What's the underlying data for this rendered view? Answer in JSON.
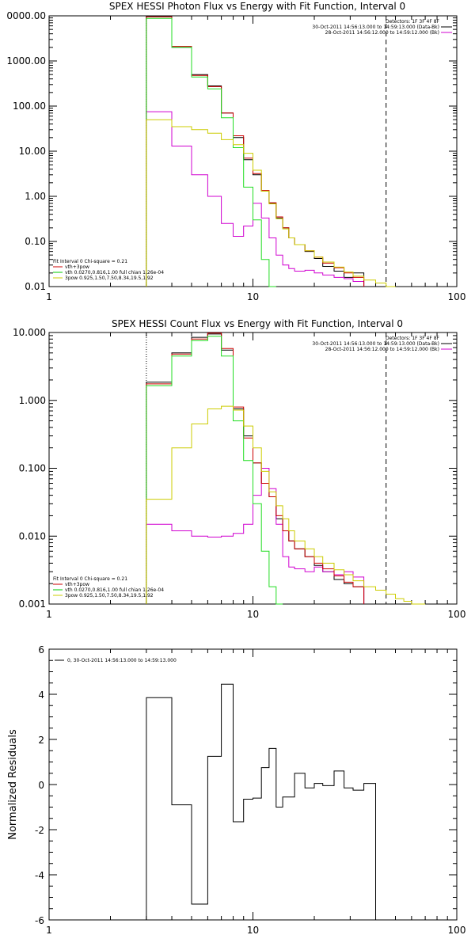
{
  "chart_data": [
    {
      "type": "line",
      "title": "SPEX HESSI Photon Flux vs Energy with Fit Function, Interval 0",
      "xscale": "log",
      "yscale": "log",
      "xlim": [
        1,
        100
      ],
      "ylim": [
        0.01,
        10000
      ],
      "x_ticks": [
        "1",
        "10",
        "100"
      ],
      "y_ticks": [
        "0.01",
        "0.10",
        "1.00",
        "10.00",
        "100.00",
        "1000.00",
        "10000.00"
      ],
      "first_y_tick_clipped": "0000.00",
      "energy_edges": [
        3,
        4,
        5,
        6,
        7,
        8,
        9,
        10,
        11,
        12,
        13,
        14,
        15,
        16,
        18,
        20,
        22,
        25,
        28,
        31,
        35,
        40,
        45,
        50,
        55,
        60,
        70,
        80,
        90,
        100
      ],
      "vertical_markers": [
        {
          "x": 3,
          "style": "dotted"
        },
        {
          "x": 45,
          "style": "dashed"
        }
      ],
      "legend_top_right": [
        {
          "text": "Detectors: 1F 3F 4F 8F",
          "color": "#000000"
        },
        {
          "text": "30-Oct-2011 14:56:13.000 to 14:59:13.000 (Data-Bk)",
          "color": "#000000"
        },
        {
          "text": "28-Oct-2011 14:56:12.000 to 14:59:12.000 (Bk)",
          "color": "#d000d0"
        }
      ],
      "legend_bottom_left": [
        {
          "text": "Fit Interval 0   Chi-square = 0.21",
          "color": "#000000"
        },
        {
          "text": "vth+3pow",
          "color": "#cc0000"
        },
        {
          "text": "vth 0.0270,0.816,1.00  full chian 1.26e-04",
          "color": "#00cc00"
        },
        {
          "text": "3pow 0.925,1.50,7.50,8.34,19.5,1.92",
          "color": "#cccc00"
        }
      ],
      "series": [
        {
          "name": "Data-Bk",
          "color": "#000000",
          "values": [
            9800,
            2000,
            500,
            280,
            70,
            20,
            6.5,
            3.0,
            1.3,
            0.7,
            0.33,
            0.2,
            0.12,
            0.085,
            0.06,
            0.042,
            0.028,
            0.022,
            0.016,
            0.02,
            null,
            null,
            null,
            null,
            null,
            null,
            null,
            null,
            null
          ]
        },
        {
          "name": "Bk",
          "color": "#d000d0",
          "values": [
            75,
            13,
            3.0,
            1.0,
            0.25,
            0.13,
            0.22,
            0.7,
            0.33,
            0.12,
            0.05,
            0.03,
            0.025,
            0.022,
            0.023,
            0.02,
            0.018,
            0.016,
            0.015,
            0.013,
            null,
            null,
            null,
            null,
            null,
            null,
            null,
            null,
            null
          ]
        },
        {
          "name": "vth+3pow",
          "color": "#cc0000",
          "values": [
            9500,
            2100,
            480,
            270,
            70,
            22,
            7.0,
            3.2,
            1.35,
            0.72,
            0.35,
            0.2,
            0.12,
            0.085,
            0.062,
            0.045,
            0.033,
            0.026,
            0.02,
            0.016,
            null,
            null,
            null,
            null,
            null,
            null,
            null,
            null,
            null
          ]
        },
        {
          "name": "vth",
          "color": "#22dd22",
          "values": [
            8800,
            2000,
            440,
            240,
            55,
            12,
            1.6,
            0.3,
            0.04,
            0.006,
            null,
            null,
            null,
            null,
            null,
            null,
            null,
            null,
            null,
            null,
            null,
            null,
            null,
            null,
            null,
            null,
            null,
            null,
            null
          ]
        },
        {
          "name": "3pow",
          "color": "#cccc00",
          "values": [
            50,
            35,
            30,
            25,
            18,
            14,
            9,
            3.8,
            1.3,
            0.68,
            0.32,
            0.19,
            0.12,
            0.085,
            0.062,
            0.045,
            0.035,
            0.027,
            0.021,
            0.017,
            0.014,
            0.012,
            0.01,
            null,
            null,
            null,
            null,
            null,
            null
          ]
        }
      ]
    },
    {
      "type": "line",
      "title": "SPEX HESSI Count Flux vs Energy with Fit Function, Interval 0",
      "xscale": "log",
      "yscale": "log",
      "xlim": [
        1,
        100
      ],
      "ylim": [
        0.001,
        10
      ],
      "x_ticks": [
        "1",
        "10",
        "100"
      ],
      "y_ticks": [
        "0.001",
        "0.010",
        "0.100",
        "1.000",
        "10.000"
      ],
      "energy_edges": [
        3,
        4,
        5,
        6,
        7,
        8,
        9,
        10,
        11,
        12,
        13,
        14,
        15,
        16,
        18,
        20,
        22,
        25,
        28,
        31,
        35,
        40,
        45,
        50,
        55,
        60,
        70,
        80,
        90,
        100
      ],
      "vertical_markers": [
        {
          "x": 3,
          "style": "dotted"
        },
        {
          "x": 45,
          "style": "dashed"
        }
      ],
      "legend_top_right": [
        {
          "text": "Detectors: 1F 3F 4F 8F",
          "color": "#000000"
        },
        {
          "text": "30-Oct-2011 14:56:13.000 to 14:59:13.000 (Data-Bk)",
          "color": "#000000"
        },
        {
          "text": "28-Oct-2011 14:56:12.000 to 14:59:12.000 (Bk)",
          "color": "#d000d0"
        }
      ],
      "legend_bottom_left": [
        {
          "text": "Fit Interval 0   Chi-square = 0.21",
          "color": "#000000"
        },
        {
          "text": "vth+3pow",
          "color": "#cc0000"
        },
        {
          "text": "vth 0.0270,0.816,1.00  full chian 1.26e-04",
          "color": "#00cc00"
        },
        {
          "text": "3pow 0.925,1.50,7.50,8.34,19.5,1.92",
          "color": "#cccc00"
        }
      ],
      "series": [
        {
          "name": "Data-Bk",
          "color": "#000000",
          "values": [
            1.85,
            5.0,
            8.5,
            9.5,
            5.5,
            0.75,
            0.3,
            0.12,
            0.06,
            0.038,
            0.018,
            0.012,
            0.0085,
            0.0065,
            0.005,
            0.0037,
            0.003,
            0.0023,
            0.002,
            0.0018,
            null,
            null,
            null,
            null,
            null,
            null,
            null,
            null,
            null
          ]
        },
        {
          "name": "Bk",
          "color": "#d000d0",
          "values": [
            0.015,
            0.012,
            0.01,
            0.0097,
            0.01,
            0.011,
            0.015,
            0.04,
            0.1,
            0.05,
            0.015,
            0.005,
            0.0035,
            0.0033,
            0.003,
            0.0035,
            0.003,
            0.0027,
            0.003,
            0.0025,
            null,
            null,
            null,
            null,
            null,
            null,
            null,
            null,
            null
          ]
        },
        {
          "name": "vth+3pow",
          "color": "#cc0000",
          "values": [
            1.75,
            4.8,
            8.0,
            9.8,
            5.8,
            0.8,
            0.28,
            0.12,
            0.06,
            0.038,
            0.02,
            0.012,
            0.0085,
            0.0065,
            0.005,
            0.004,
            0.0033,
            0.0026,
            0.0021,
            0.0018,
            null,
            null,
            null,
            null,
            null,
            null,
            null,
            null,
            null
          ]
        },
        {
          "name": "vth",
          "color": "#22dd22",
          "values": [
            1.65,
            4.5,
            7.6,
            8.8,
            4.5,
            0.5,
            0.13,
            0.03,
            0.006,
            0.0018,
            0.001,
            null,
            null,
            null,
            null,
            null,
            null,
            null,
            null,
            null,
            null,
            null,
            null,
            null,
            null,
            null,
            null,
            null,
            null
          ]
        },
        {
          "name": "3pow",
          "color": "#cccc00",
          "values": [
            0.035,
            0.2,
            0.45,
            0.75,
            0.82,
            0.72,
            0.42,
            0.2,
            0.09,
            0.045,
            0.028,
            0.018,
            0.012,
            0.0085,
            0.0065,
            0.005,
            0.004,
            0.0032,
            0.0027,
            0.0022,
            0.0018,
            0.0016,
            0.0014,
            0.0012,
            0.0011,
            0.001,
            null,
            null,
            null
          ]
        }
      ]
    },
    {
      "type": "line",
      "title": "",
      "xscale": "log",
      "yscale": "linear",
      "xlim": [
        1,
        100
      ],
      "ylim": [
        -6,
        6
      ],
      "ylabel": "Normalized Residuals",
      "x_ticks": [
        "1",
        "10",
        "100"
      ],
      "y_ticks": [
        "-6",
        "-4",
        "-2",
        "0",
        "2",
        "4",
        "6"
      ],
      "energy_edges": [
        3,
        4,
        5,
        6,
        7,
        8,
        9,
        10,
        11,
        12,
        13,
        14,
        15,
        16,
        18,
        20,
        22,
        25,
        28,
        31,
        35,
        40,
        45
      ],
      "legend_top_left": [
        {
          "text": "0, 30-Oct-2011 14:56:13.000 to 14:59:13.000",
          "color": "#000000"
        }
      ],
      "series": [
        {
          "name": "0, 30-Oct-2011 14:56:13.000 to 14:59:13.000",
          "color": "#000000",
          "values": [
            3.85,
            -0.9,
            -5.3,
            1.25,
            4.45,
            -1.65,
            -0.65,
            -0.6,
            0.75,
            1.6,
            -1.0,
            -0.55,
            -0.55,
            0.5,
            -0.15,
            0.05,
            -0.05,
            0.6,
            -0.15,
            -0.25,
            0.05,
            null
          ]
        }
      ]
    }
  ]
}
